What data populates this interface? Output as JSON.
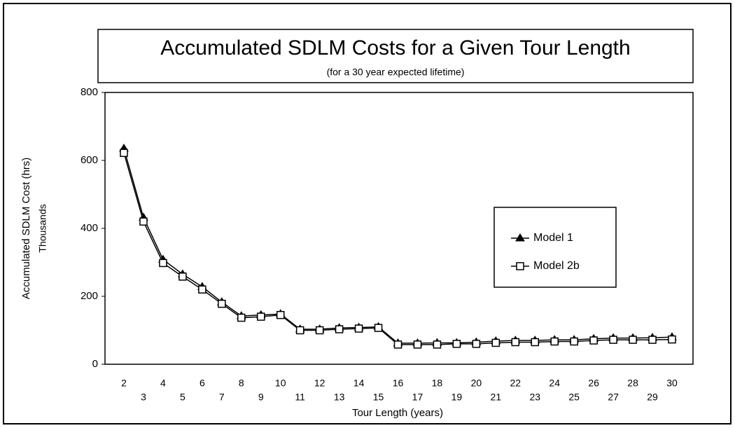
{
  "chart_data": {
    "type": "line",
    "title": "Accumulated SDLM Costs for a Given Tour Length",
    "subtitle": "(for a 30 year expected lifetime)",
    "y_label": "Accumulated SDLM Cost (hrs)",
    "y_label_units": "Thousands",
    "x_label": "Tour Length (years)",
    "categories": [
      2,
      3,
      4,
      5,
      6,
      7,
      8,
      9,
      10,
      11,
      12,
      13,
      14,
      15,
      16,
      17,
      18,
      19,
      20,
      21,
      22,
      23,
      24,
      25,
      26,
      27,
      28,
      29,
      30
    ],
    "series": [
      {
        "name": "Model 1",
        "color": "#000000",
        "marker": "triangle",
        "values": [
          635,
          432,
          308,
          265,
          228,
          183,
          142,
          145,
          148,
          103,
          103,
          107,
          108,
          110,
          62,
          62,
          63,
          63,
          65,
          68,
          70,
          70,
          72,
          72,
          75,
          77,
          77,
          78,
          80
        ]
      },
      {
        "name": "Model 2b",
        "color": "#000000",
        "marker": "square",
        "values": [
          622,
          420,
          298,
          258,
          220,
          178,
          137,
          140,
          145,
          100,
          100,
          103,
          105,
          107,
          58,
          58,
          58,
          60,
          60,
          63,
          65,
          65,
          67,
          67,
          70,
          72,
          72,
          72,
          73
        ]
      }
    ],
    "ylim": [
      0,
      800
    ],
    "yticks": [
      0,
      200,
      400,
      600,
      800
    ],
    "legend": "right"
  }
}
